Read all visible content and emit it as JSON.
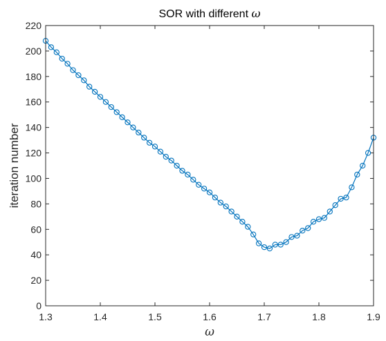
{
  "chart_data": {
    "type": "line",
    "title_prefix": "SOR with different ",
    "title_symbol": "ω",
    "xlabel": "ω",
    "ylabel": "iteration number",
    "xlim": [
      1.3,
      1.9
    ],
    "ylim": [
      0,
      220
    ],
    "xticks": [
      "1.3",
      "1.4",
      "1.5",
      "1.6",
      "1.7",
      "1.8",
      "1.9"
    ],
    "yticks": [
      "0",
      "20",
      "40",
      "60",
      "80",
      "100",
      "120",
      "140",
      "160",
      "180",
      "200",
      "220"
    ],
    "grid": false,
    "line_color": "#0072BD",
    "marker": "circle",
    "series": [
      {
        "x": [
          1.3,
          1.31,
          1.32,
          1.33,
          1.34,
          1.35,
          1.36,
          1.37,
          1.38,
          1.39,
          1.4,
          1.41,
          1.42,
          1.43,
          1.44,
          1.45,
          1.46,
          1.47,
          1.48,
          1.49,
          1.5,
          1.51,
          1.52,
          1.53,
          1.54,
          1.55,
          1.56,
          1.57,
          1.58,
          1.59,
          1.6,
          1.61,
          1.62,
          1.63,
          1.64,
          1.65,
          1.66,
          1.67,
          1.68,
          1.69,
          1.7,
          1.71,
          1.72,
          1.73,
          1.74,
          1.75,
          1.76,
          1.77,
          1.78,
          1.79,
          1.8,
          1.81,
          1.82,
          1.83,
          1.84,
          1.85,
          1.86,
          1.87,
          1.88,
          1.89,
          1.9
        ],
        "y": [
          208,
          203,
          199,
          194,
          190,
          185,
          181,
          177,
          172,
          168,
          164,
          160,
          156,
          152,
          148,
          144,
          140,
          136,
          132,
          128,
          125,
          121,
          117,
          114,
          110,
          106,
          103,
          99,
          95,
          92,
          89,
          85,
          81,
          78,
          74,
          70,
          66,
          62,
          56,
          49,
          46,
          45,
          48,
          48,
          50,
          54,
          55,
          59,
          61,
          66,
          68,
          69,
          74,
          79,
          84,
          85,
          93,
          103,
          110,
          120,
          132
        ]
      }
    ]
  }
}
